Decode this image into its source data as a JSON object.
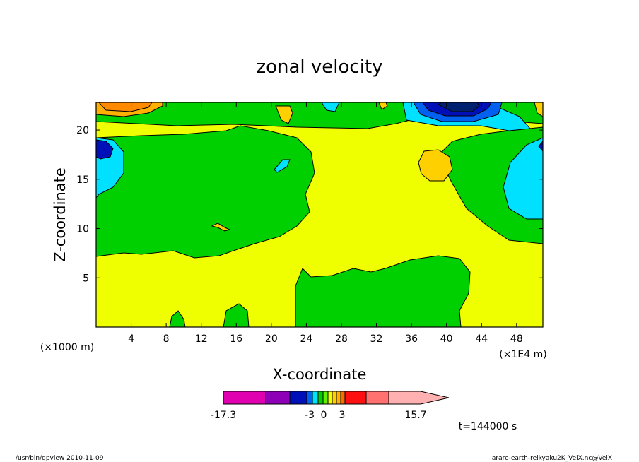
{
  "chart_data": {
    "type": "heatmap",
    "title": "zonal velocity",
    "xlabel": "X-coordinate",
    "ylabel": "Z-coordinate",
    "x_unit_left": "(×1000 m)",
    "x_unit_right": "(×1E4 m)",
    "xlim": [
      0,
      51
    ],
    "ylim": [
      0,
      22.8
    ],
    "x_ticks": [
      4,
      8,
      12,
      16,
      20,
      24,
      28,
      32,
      36,
      40,
      44,
      48
    ],
    "y_ticks": [
      5,
      10,
      15,
      20
    ],
    "colorbar": {
      "min_label": "-17.3",
      "max_label": "15.7",
      "tick_labels": [
        "-3",
        "0",
        "3"
      ],
      "colors": [
        "#e000b0",
        "#8e00b8",
        "#0010b8",
        "#0060f0",
        "#00e0ff",
        "#00d000",
        "#60f000",
        "#f0ff00",
        "#ffd000",
        "#ffb000",
        "#ff6a00",
        "#ff1010",
        "#ff7070",
        "#ffb0b0"
      ]
    },
    "regions": [
      {
        "level": "low",
        "color": "#ffd000",
        "x": [
          0,
          51
        ],
        "z": [
          0,
          7.5
        ]
      },
      {
        "level": "slightly positive",
        "color": "#60f000",
        "x": [
          24,
          42
        ],
        "z": [
          0,
          6.2
        ]
      },
      {
        "level": "strong negative",
        "color": "#0010b8",
        "x": [
          36,
          43
        ],
        "z": [
          21,
          22.8
        ]
      },
      {
        "level": "negative",
        "color": "#00e0ff",
        "x": [
          0,
          3.5
        ],
        "z": [
          13,
          19
        ]
      }
    ],
    "time_label": "t=144000 s"
  },
  "footer": {
    "left": "/usr/bin/gpview  2010-11-09",
    "right": "arare-earth-reikyaku2K_VelX.nc@VelX"
  }
}
